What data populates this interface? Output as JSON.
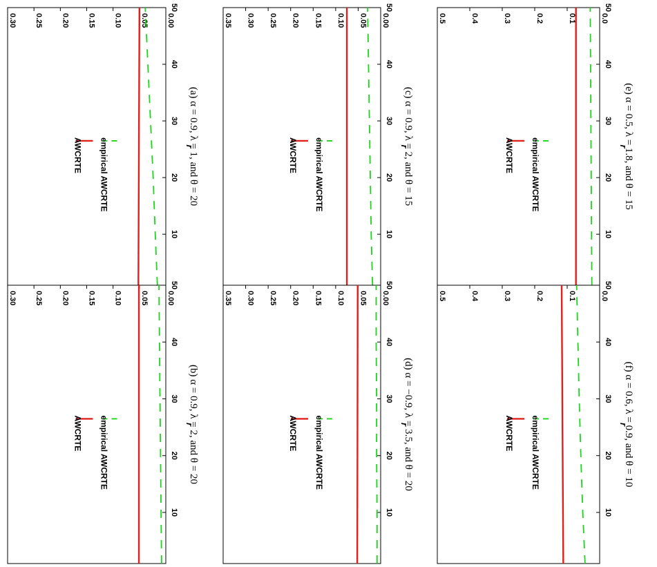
{
  "legend": {
    "primary": "AWCRTE",
    "secondary": "empirical AWCRTE"
  },
  "colors": {
    "primary": "#e0201b",
    "secondary": "#19d619",
    "axis": "#000000"
  },
  "chart_data": [
    {
      "id": "a",
      "type": "line",
      "caption": "(a) α = 0.9, λ = 1, and θ = 20",
      "xlabel": "r",
      "xlim": [
        1,
        50
      ],
      "ylim": [
        0,
        0.3
      ],
      "xticks": [
        10,
        20,
        30,
        40,
        50
      ],
      "yticks": [
        0.0,
        0.05,
        0.1,
        0.15,
        0.2,
        0.25,
        0.3
      ],
      "ytick_labels": [
        "0.00",
        "0.05",
        "0.10",
        "0.15",
        "0.20",
        "0.25",
        "0.30"
      ],
      "series": [
        {
          "name": "AWCRTE",
          "style": "solid",
          "x": [
            1,
            50
          ],
          "y": [
            0.052,
            0.05
          ]
        },
        {
          "name": "empirical AWCRTE",
          "style": "dashed",
          "x": [
            1,
            10,
            20,
            30,
            40,
            50
          ],
          "y": [
            0.016,
            0.02,
            0.024,
            0.029,
            0.034,
            0.039
          ]
        }
      ]
    },
    {
      "id": "b",
      "type": "line",
      "caption": "(b) α = 0.9, λ = 2, and θ = 20",
      "xlabel": "r",
      "xlim": [
        1,
        50
      ],
      "ylim": [
        0,
        0.3
      ],
      "xticks": [
        10,
        20,
        30,
        40,
        50
      ],
      "yticks": [
        0.0,
        0.05,
        0.1,
        0.15,
        0.2,
        0.25,
        0.3
      ],
      "ytick_labels": [
        "0.00",
        "0.05",
        "0.10",
        "0.15",
        "0.20",
        "0.25",
        "0.30"
      ],
      "series": [
        {
          "name": "AWCRTE",
          "style": "solid",
          "x": [
            1,
            50
          ],
          "y": [
            0.051,
            0.051
          ]
        },
        {
          "name": "empirical AWCRTE",
          "style": "dashed",
          "x": [
            1,
            10,
            20,
            30,
            40,
            50
          ],
          "y": [
            0.008,
            0.009,
            0.01,
            0.011,
            0.012,
            0.013
          ]
        }
      ]
    },
    {
      "id": "c",
      "type": "line",
      "caption": "(c) α = 0.9, λ = 2, and θ = 15",
      "xlabel": "r",
      "xlim": [
        1,
        50
      ],
      "ylim": [
        0,
        0.35
      ],
      "xticks": [
        10,
        20,
        30,
        40,
        50
      ],
      "yticks": [
        0.0,
        0.05,
        0.1,
        0.15,
        0.2,
        0.25,
        0.3,
        0.35
      ],
      "ytick_labels": [
        "0.00",
        "0.05",
        "0.10",
        "0.15",
        "0.20",
        "0.25",
        "0.30",
        "0.35"
      ],
      "series": [
        {
          "name": "AWCRTE",
          "style": "solid",
          "x": [
            1,
            50
          ],
          "y": [
            0.075,
            0.075
          ]
        },
        {
          "name": "empirical AWCRTE",
          "style": "dashed",
          "x": [
            1,
            10,
            20,
            30,
            40,
            50
          ],
          "y": [
            0.018,
            0.021,
            0.023,
            0.025,
            0.027,
            0.029
          ]
        }
      ]
    },
    {
      "id": "d",
      "type": "line",
      "caption": "(d) α = −0.9, λ = 3.5, and θ = 20",
      "xlabel": "r",
      "xlim": [
        1,
        50
      ],
      "ylim": [
        0,
        0.35
      ],
      "xticks": [
        10,
        20,
        30,
        40,
        50
      ],
      "yticks": [
        0.0,
        0.05,
        0.1,
        0.15,
        0.2,
        0.25,
        0.3,
        0.35
      ],
      "ytick_labels": [
        "0.00",
        "0.05",
        "0.10",
        "0.15",
        "0.20",
        "0.25",
        "0.30",
        "0.35"
      ],
      "series": [
        {
          "name": "AWCRTE",
          "style": "solid",
          "x": [
            1,
            50
          ],
          "y": [
            0.052,
            0.051
          ]
        },
        {
          "name": "empirical AWCRTE",
          "style": "dashed",
          "x": [
            1,
            10,
            20,
            30,
            40,
            50
          ],
          "y": [
            0.008,
            0.008,
            0.009,
            0.009,
            0.01,
            0.01
          ]
        }
      ]
    },
    {
      "id": "e",
      "type": "line",
      "caption": "(e) α = 0.5, λ = 1.8, and θ = 15",
      "xlabel": "r",
      "xlim": [
        1,
        50
      ],
      "ylim": [
        0,
        0.5
      ],
      "xticks": [
        10,
        20,
        30,
        40,
        50
      ],
      "yticks": [
        0.0,
        0.1,
        0.2,
        0.3,
        0.4,
        0.5
      ],
      "ytick_labels": [
        "0.0",
        "0.1",
        "0.2",
        "0.3",
        "0.4",
        "0.5"
      ],
      "series": [
        {
          "name": "AWCRTE",
          "style": "solid",
          "x": [
            1,
            50
          ],
          "y": [
            0.073,
            0.073
          ]
        },
        {
          "name": "empirical AWCRTE",
          "style": "dashed",
          "x": [
            1,
            10,
            20,
            30,
            40,
            50
          ],
          "y": [
            0.024,
            0.025,
            0.026,
            0.027,
            0.028,
            0.029
          ]
        }
      ]
    },
    {
      "id": "f",
      "type": "line",
      "caption": "(f) α = 0.6, λ = 0.9, and θ = 10",
      "xlabel": "r",
      "xlim": [
        1,
        50
      ],
      "ylim": [
        0,
        0.5
      ],
      "xticks": [
        10,
        20,
        30,
        40,
        50
      ],
      "yticks": [
        0.0,
        0.1,
        0.2,
        0.3,
        0.4,
        0.5
      ],
      "ytick_labels": [
        "0.0",
        "0.1",
        "0.2",
        "0.3",
        "0.4",
        "0.5"
      ],
      "series": [
        {
          "name": "AWCRTE",
          "style": "solid",
          "x": [
            1,
            50
          ],
          "y": [
            0.112,
            0.117
          ]
        },
        {
          "name": "empirical AWCRTE",
          "style": "dashed",
          "x": [
            1,
            10,
            20,
            30,
            40,
            50
          ],
          "y": [
            0.045,
            0.052,
            0.058,
            0.063,
            0.067,
            0.071
          ]
        }
      ]
    }
  ]
}
